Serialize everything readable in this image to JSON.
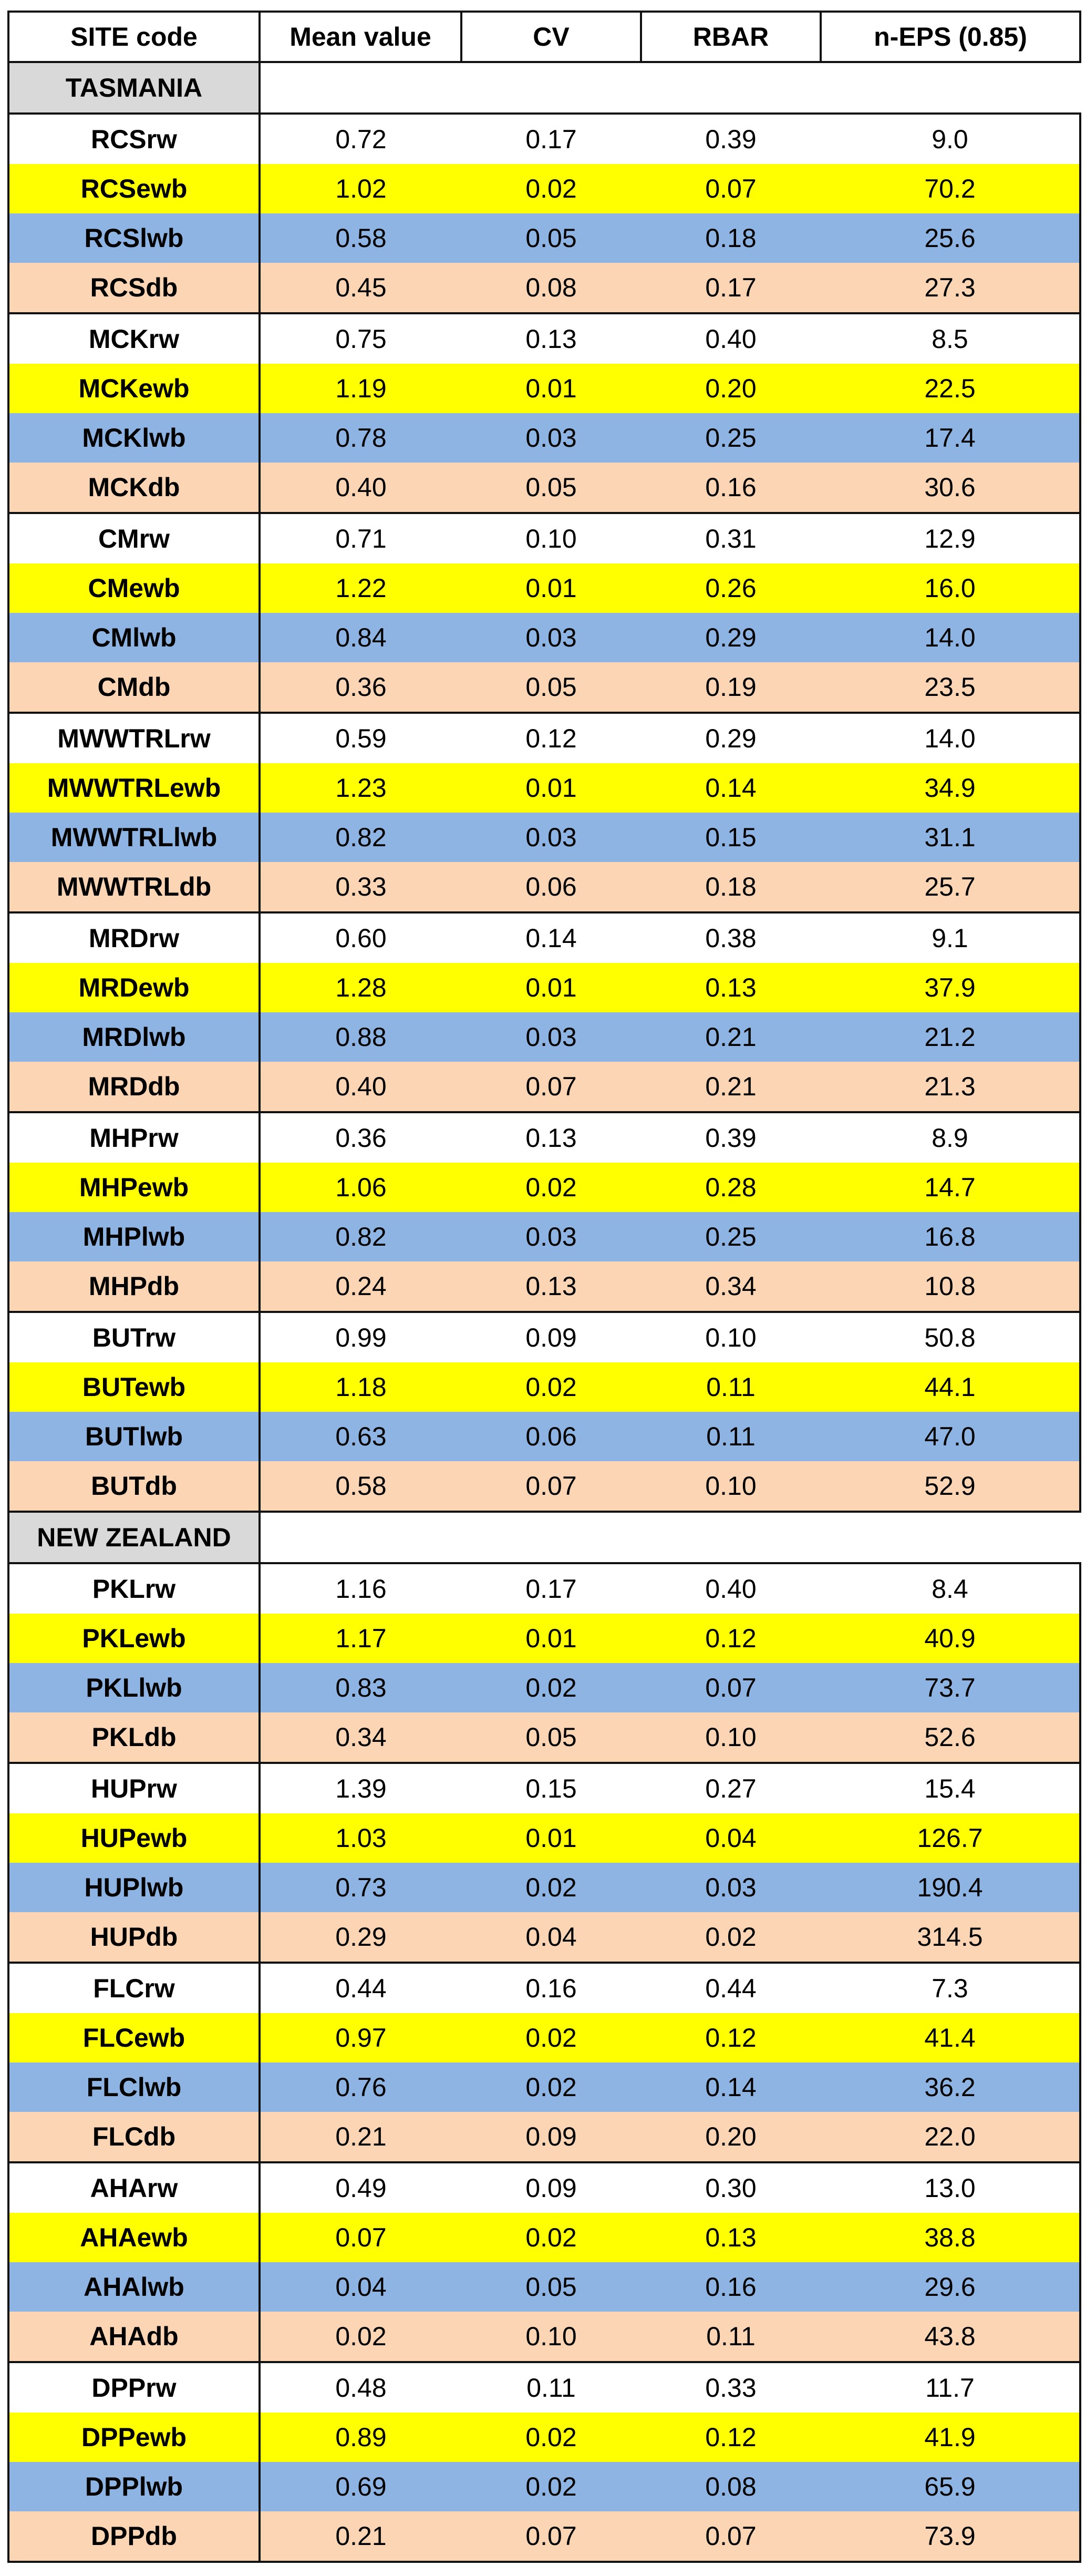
{
  "headers": [
    "SITE code",
    "Mean value",
    "CV",
    "RBAR",
    "n-EPS (0.85)"
  ],
  "regions": [
    {
      "name": "TASMANIA",
      "rows": [
        [
          "RCSrw",
          "0.72",
          "0.17",
          "0.39",
          "9.0"
        ],
        [
          "RCSewb",
          "1.02",
          "0.02",
          "0.07",
          "70.2"
        ],
        [
          "RCSlwb",
          "0.58",
          "0.05",
          "0.18",
          "25.6"
        ],
        [
          "RCSdb",
          "0.45",
          "0.08",
          "0.17",
          "27.3"
        ],
        [
          "MCKrw",
          "0.75",
          "0.13",
          "0.40",
          "8.5"
        ],
        [
          "MCKewb",
          "1.19",
          "0.01",
          "0.20",
          "22.5"
        ],
        [
          "MCKlwb",
          "0.78",
          "0.03",
          "0.25",
          "17.4"
        ],
        [
          "MCKdb",
          "0.40",
          "0.05",
          "0.16",
          "30.6"
        ],
        [
          "CMrw",
          "0.71",
          "0.10",
          "0.31",
          "12.9"
        ],
        [
          "CMewb",
          "1.22",
          "0.01",
          "0.26",
          "16.0"
        ],
        [
          "CMlwb",
          "0.84",
          "0.03",
          "0.29",
          "14.0"
        ],
        [
          "CMdb",
          "0.36",
          "0.05",
          "0.19",
          "23.5"
        ],
        [
          "MWWTRLrw",
          "0.59",
          "0.12",
          "0.29",
          "14.0"
        ],
        [
          "MWWTRLewb",
          "1.23",
          "0.01",
          "0.14",
          "34.9"
        ],
        [
          "MWWTRLlwb",
          "0.82",
          "0.03",
          "0.15",
          "31.1"
        ],
        [
          "MWWTRLdb",
          "0.33",
          "0.06",
          "0.18",
          "25.7"
        ],
        [
          "MRDrw",
          "0.60",
          "0.14",
          "0.38",
          "9.1"
        ],
        [
          "MRDewb",
          "1.28",
          "0.01",
          "0.13",
          "37.9"
        ],
        [
          "MRDlwb",
          "0.88",
          "0.03",
          "0.21",
          "21.2"
        ],
        [
          "MRDdb",
          "0.40",
          "0.07",
          "0.21",
          "21.3"
        ],
        [
          "MHPrw",
          "0.36",
          "0.13",
          "0.39",
          "8.9"
        ],
        [
          "MHPewb",
          "1.06",
          "0.02",
          "0.28",
          "14.7"
        ],
        [
          "MHPlwb",
          "0.82",
          "0.03",
          "0.25",
          "16.8"
        ],
        [
          "MHPdb",
          "0.24",
          "0.13",
          "0.34",
          "10.8"
        ],
        [
          "BUTrw",
          "0.99",
          "0.09",
          "0.10",
          "50.8"
        ],
        [
          "BUTewb",
          "1.18",
          "0.02",
          "0.11",
          "44.1"
        ],
        [
          "BUTlwb",
          "0.63",
          "0.06",
          "0.11",
          "47.0"
        ],
        [
          "BUTdb",
          "0.58",
          "0.07",
          "0.10",
          "52.9"
        ]
      ]
    },
    {
      "name": "NEW ZEALAND",
      "rows": [
        [
          "PKLrw",
          "1.16",
          "0.17",
          "0.40",
          "8.4"
        ],
        [
          "PKLewb",
          "1.17",
          "0.01",
          "0.12",
          "40.9"
        ],
        [
          "PKLlwb",
          "0.83",
          "0.02",
          "0.07",
          "73.7"
        ],
        [
          "PKLdb",
          "0.34",
          "0.05",
          "0.10",
          "52.6"
        ],
        [
          "HUPrw",
          "1.39",
          "0.15",
          "0.27",
          "15.4"
        ],
        [
          "HUPewb",
          "1.03",
          "0.01",
          "0.04",
          "126.7"
        ],
        [
          "HUPlwb",
          "0.73",
          "0.02",
          "0.03",
          "190.4"
        ],
        [
          "HUPdb",
          "0.29",
          "0.04",
          "0.02",
          "314.5"
        ],
        [
          "FLCrw",
          "0.44",
          "0.16",
          "0.44",
          "7.3"
        ],
        [
          "FLCewb",
          "0.97",
          "0.02",
          "0.12",
          "41.4"
        ],
        [
          "FLClwb",
          "0.76",
          "0.02",
          "0.14",
          "36.2"
        ],
        [
          "FLCdb",
          "0.21",
          "0.09",
          "0.20",
          "22.0"
        ],
        [
          "AHArw",
          "0.49",
          "0.09",
          "0.30",
          "13.0"
        ],
        [
          "AHAewb",
          "0.07",
          "0.02",
          "0.13",
          "38.8"
        ],
        [
          "AHAlwb",
          "0.04",
          "0.05",
          "0.16",
          "29.6"
        ],
        [
          "AHAdb",
          "0.02",
          "0.10",
          "0.11",
          "43.8"
        ],
        [
          "DPPrw",
          "0.48",
          "0.11",
          "0.33",
          "11.7"
        ],
        [
          "DPPewb",
          "0.89",
          "0.02",
          "0.12",
          "41.9"
        ],
        [
          "DPPlwb",
          "0.69",
          "0.02",
          "0.08",
          "65.9"
        ],
        [
          "DPPdb",
          "0.21",
          "0.07",
          "0.07",
          "73.9"
        ]
      ]
    }
  ],
  "row_colors": {
    "rw": "#ffffff",
    "ewb": "#ffff00",
    "lwb": "#8eb4e3",
    "db": "#fcd5b5",
    "region_label": "#d9d9d9"
  }
}
